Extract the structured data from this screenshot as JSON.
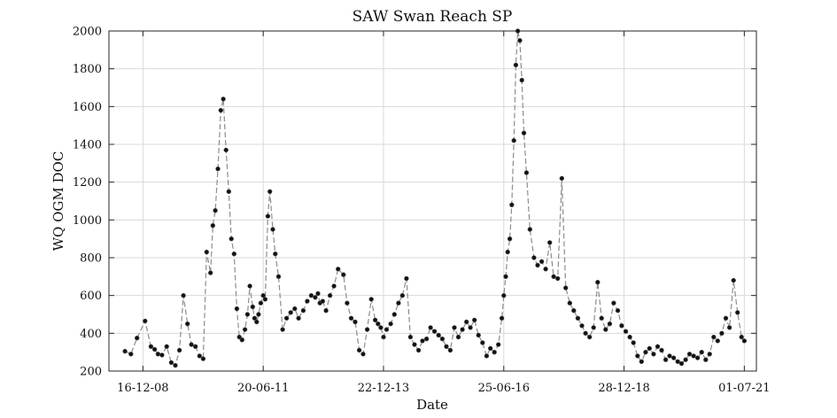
{
  "chart_data": {
    "type": "scatter",
    "title": "SAW Swan Reach SP",
    "xlabel": "Date",
    "ylabel": "WQ OGM DOC",
    "x_tick_labels": [
      "16-12-08",
      "20-06-11",
      "22-12-13",
      "25-06-16",
      "28-12-18",
      "01-07-21"
    ],
    "x_tick_dates": [
      "2008-12-16",
      "2011-06-20",
      "2013-12-22",
      "2016-06-25",
      "2018-12-28",
      "2021-07-01"
    ],
    "xlim": [
      "2008-04-01",
      "2021-10-01"
    ],
    "y_tick_labels": [
      "200",
      "400",
      "600",
      "800",
      "1000",
      "1200",
      "1400",
      "1600",
      "1800",
      "2000"
    ],
    "ylim": [
      200,
      2000
    ],
    "grid": true,
    "line_style": "dashed",
    "colors": {
      "line": "#8c8c8c",
      "marker": "#111111",
      "grid": "#d9d9d9",
      "axis": "#262626"
    },
    "series": [
      {
        "x": [
          "2008-08-01",
          "2008-09-15",
          "2008-11-01",
          "2009-01-01",
          "2009-02-15",
          "2009-03-15",
          "2009-04-10",
          "2009-05-10",
          "2009-06-15",
          "2009-07-20",
          "2009-08-20",
          "2009-09-20",
          "2009-10-20",
          "2009-11-20",
          "2009-12-20",
          "2010-01-20",
          "2010-02-20",
          "2010-03-20",
          "2010-04-15",
          "2010-05-15",
          "2010-06-01",
          "2010-06-20",
          "2010-07-10",
          "2010-08-01",
          "2010-08-20",
          "2010-09-10",
          "2010-10-01",
          "2010-10-20",
          "2010-11-10",
          "2010-12-01",
          "2010-12-20",
          "2011-01-10",
          "2011-02-01",
          "2011-02-20",
          "2011-03-10",
          "2011-04-01",
          "2011-04-15",
          "2011-05-01",
          "2011-05-15",
          "2011-06-01",
          "2011-06-20",
          "2011-07-05",
          "2011-07-25",
          "2011-08-10",
          "2011-09-01",
          "2011-09-20",
          "2011-10-15",
          "2011-11-15",
          "2011-12-15",
          "2012-01-15",
          "2012-02-15",
          "2012-03-15",
          "2012-04-20",
          "2012-05-20",
          "2012-06-20",
          "2012-07-20",
          "2012-08-10",
          "2012-08-25",
          "2012-09-15",
          "2012-10-10",
          "2012-11-10",
          "2012-12-10",
          "2013-01-10",
          "2013-02-20",
          "2013-03-20",
          "2013-04-20",
          "2013-05-20",
          "2013-06-20",
          "2013-07-20",
          "2013-08-20",
          "2013-09-20",
          "2013-10-20",
          "2013-11-10",
          "2013-12-01",
          "2013-12-22",
          "2014-01-15",
          "2014-02-15",
          "2014-03-15",
          "2014-04-15",
          "2014-05-15",
          "2014-06-15",
          "2014-07-15",
          "2014-08-15",
          "2014-09-15",
          "2014-10-15",
          "2014-11-15",
          "2014-12-15",
          "2015-01-15",
          "2015-02-15",
          "2015-03-15",
          "2015-04-15",
          "2015-05-15",
          "2015-06-15",
          "2015-07-15",
          "2015-08-15",
          "2015-09-15",
          "2015-10-15",
          "2015-11-15",
          "2015-12-15",
          "2016-01-15",
          "2016-02-15",
          "2016-03-15",
          "2016-04-15",
          "2016-05-15",
          "2016-06-10",
          "2016-06-25",
          "2016-07-10",
          "2016-07-25",
          "2016-08-10",
          "2016-08-25",
          "2016-09-10",
          "2016-09-25",
          "2016-10-10",
          "2016-10-25",
          "2016-11-10",
          "2016-11-25",
          "2016-12-15",
          "2017-01-10",
          "2017-02-10",
          "2017-03-10",
          "2017-04-10",
          "2017-05-10",
          "2017-06-10",
          "2017-07-10",
          "2017-08-10",
          "2017-09-10",
          "2017-10-10",
          "2017-11-10",
          "2017-12-10",
          "2018-01-10",
          "2018-02-10",
          "2018-03-10",
          "2018-04-10",
          "2018-05-10",
          "2018-06-10",
          "2018-07-10",
          "2018-08-10",
          "2018-09-10",
          "2018-10-10",
          "2018-11-10",
          "2018-12-10",
          "2019-01-10",
          "2019-02-10",
          "2019-03-10",
          "2019-04-10",
          "2019-05-10",
          "2019-06-10",
          "2019-07-10",
          "2019-08-10",
          "2019-09-10",
          "2019-10-10",
          "2019-11-10",
          "2019-12-10",
          "2020-01-10",
          "2020-02-10",
          "2020-03-10",
          "2020-04-10",
          "2020-05-10",
          "2020-06-10",
          "2020-07-10",
          "2020-08-10",
          "2020-09-10",
          "2020-10-10",
          "2020-11-10",
          "2020-12-10",
          "2021-01-10",
          "2021-02-10",
          "2021-03-10",
          "2021-04-10",
          "2021-05-10",
          "2021-06-10",
          "2021-07-01"
        ],
        "y": [
          305,
          290,
          375,
          465,
          330,
          315,
          290,
          285,
          330,
          245,
          230,
          310,
          600,
          450,
          340,
          330,
          280,
          265,
          830,
          720,
          970,
          1050,
          1270,
          1580,
          1640,
          1370,
          1150,
          900,
          820,
          530,
          380,
          365,
          420,
          500,
          650,
          540,
          480,
          460,
          500,
          560,
          600,
          580,
          1020,
          1150,
          950,
          820,
          700,
          420,
          480,
          510,
          530,
          480,
          520,
          570,
          600,
          590,
          610,
          560,
          570,
          520,
          600,
          650,
          740,
          710,
          560,
          480,
          460,
          310,
          290,
          420,
          580,
          470,
          450,
          430,
          380,
          420,
          450,
          500,
          560,
          600,
          690,
          380,
          340,
          310,
          360,
          370,
          430,
          410,
          390,
          370,
          330,
          310,
          430,
          380,
          420,
          460,
          430,
          470,
          390,
          350,
          280,
          320,
          300,
          340,
          480,
          600,
          700,
          830,
          900,
          1080,
          1420,
          1820,
          2000,
          1950,
          1740,
          1460,
          1250,
          950,
          800,
          760,
          780,
          740,
          880,
          700,
          690,
          1220,
          640,
          560,
          520,
          480,
          440,
          400,
          380,
          430,
          670,
          480,
          420,
          450,
          560,
          520,
          440,
          410,
          380,
          350,
          280,
          250,
          300,
          320,
          290,
          330,
          310,
          260,
          280,
          270,
          250,
          240,
          260,
          290,
          280,
          270,
          300,
          260,
          290,
          380,
          360,
          400,
          480,
          430,
          680,
          510,
          380,
          360
        ]
      }
    ]
  }
}
